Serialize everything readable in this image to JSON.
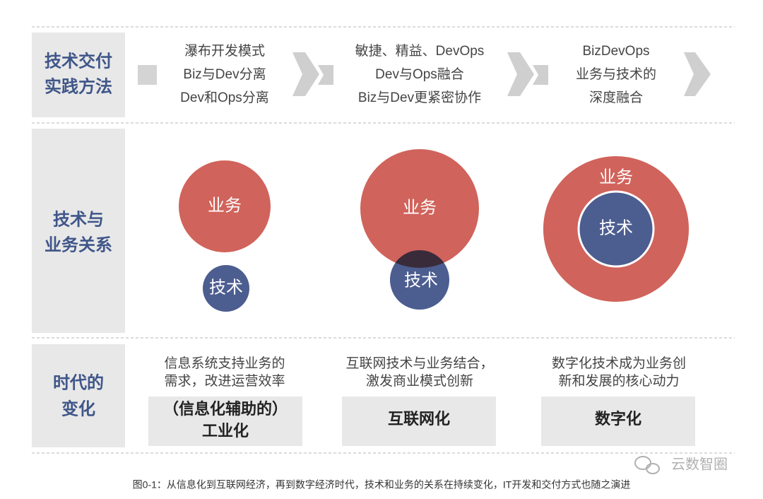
{
  "rows": [
    {
      "label": [
        "技术交付",
        "实践方法"
      ]
    },
    {
      "label": [
        "技术与",
        "业务关系"
      ]
    },
    {
      "label": [
        "时代的",
        "变化"
      ]
    }
  ],
  "practices": [
    [
      "瀑布开发模式",
      "Biz与Dev分离",
      "Dev和Ops分离"
    ],
    [
      "敏捷、精益、DevOps",
      "Dev与Ops融合",
      "Biz与Dev更紧密协作"
    ],
    [
      "BizDevOps",
      "业务与技术的",
      "深度融合"
    ]
  ],
  "relations": [
    {
      "business": "业务",
      "technology": "技术"
    },
    {
      "business": "业务",
      "technology": "技术"
    },
    {
      "business": "业务",
      "technology": "技术"
    }
  ],
  "eras": [
    {
      "description": [
        "信息系统支持业务的",
        "需求，改进运营效率"
      ],
      "name": [
        "（信息化辅助的）",
        "工业化"
      ]
    },
    {
      "description": [
        "互联网技术与业务结合，",
        "激发商业模式创新"
      ],
      "name": [
        "互联网化"
      ]
    },
    {
      "description": [
        "数字化技术成为业务创",
        "新和发展的核心动力"
      ],
      "name": [
        "数字化"
      ]
    }
  ],
  "caption": "图0-1：从信息化到互联网经济，再到数字经济时代，技术和业务的关系在持续变化，IT开发和交付方式也随之演进",
  "watermark": "云数智圈"
}
